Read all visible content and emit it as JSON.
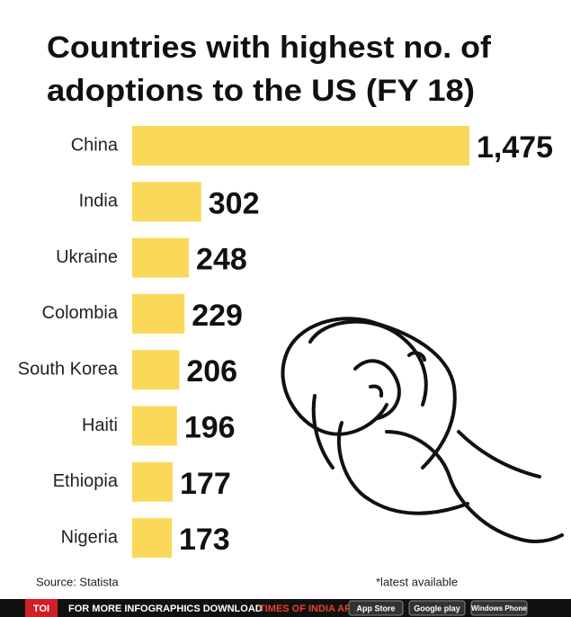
{
  "chart_data": {
    "type": "bar",
    "orientation": "horizontal",
    "title": [
      "Countries with highest no. of",
      "adoptions to the US (FY 18)"
    ],
    "categories": [
      "China",
      "India",
      "Ukraine",
      "Colombia",
      "South Korea",
      "Haiti",
      "Ethiopia",
      "Nigeria"
    ],
    "values": [
      1475,
      302,
      248,
      229,
      206,
      196,
      177,
      173
    ],
    "value_labels": [
      "1,475",
      "302",
      "248",
      "229",
      "206",
      "196",
      "177",
      "173"
    ],
    "color": "#fbd85a",
    "source": "Source: Statista",
    "note": "*latest available"
  },
  "footer": {
    "logo": "TOI",
    "text": "FOR MORE  INFOGRAPHICS DOWNLOAD",
    "app": "TIMES OF INDIA APP",
    "badges": [
      "App Store",
      "Google play",
      "Windows Phone"
    ]
  }
}
